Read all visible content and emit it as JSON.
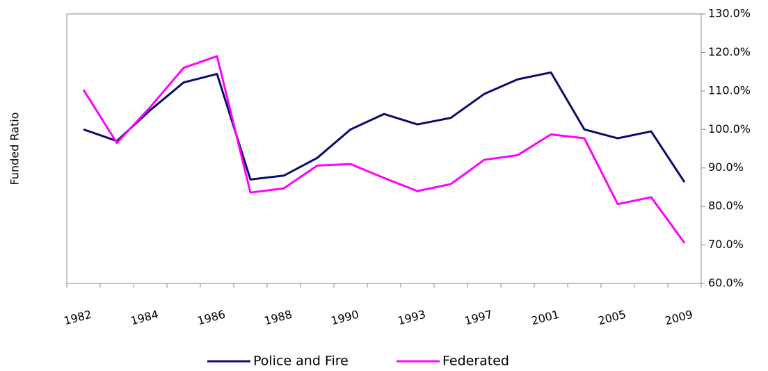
{
  "chart_data": {
    "type": "line",
    "y_label": "Funded Ratio",
    "categories": [
      "1982",
      null,
      "1984",
      null,
      "1986",
      null,
      "1988",
      null,
      "1990",
      null,
      "1993",
      null,
      "1997",
      null,
      "2001",
      null,
      "2005",
      null,
      "2009"
    ],
    "series": [
      {
        "name": "Police and Fire",
        "color": "#0b0b6b",
        "values": [
          100,
          97,
          105,
          112.2,
          114.4,
          87,
          88,
          92.6,
          100,
          104,
          101.3,
          103,
          109.2,
          113,
          114.8,
          100,
          97.7,
          99.5,
          86.3
        ]
      },
      {
        "name": "Federated",
        "color": "#ff00ff",
        "values": [
          110.3,
          96.5,
          105.8,
          116,
          119,
          83.6,
          84.7,
          90.6,
          91,
          87.4,
          84,
          85.8,
          92.1,
          93.3,
          98.7,
          97.7,
          80.6,
          82.4,
          70.5
        ]
      }
    ],
    "ylim": [
      60,
      130
    ],
    "yticks": [
      {
        "value": 60,
        "label": "60.0%"
      },
      {
        "value": 70,
        "label": "70.0%"
      },
      {
        "value": 80,
        "label": "80.0%"
      },
      {
        "value": 90,
        "label": "90.0%"
      },
      {
        "value": 100,
        "label": "100.0%"
      },
      {
        "value": 110,
        "label": "110.0%"
      },
      {
        "value": 120,
        "label": "120.0%"
      },
      {
        "value": 130,
        "label": "130.0%"
      }
    ],
    "y_axis_side": "right",
    "legend": "bottom"
  }
}
